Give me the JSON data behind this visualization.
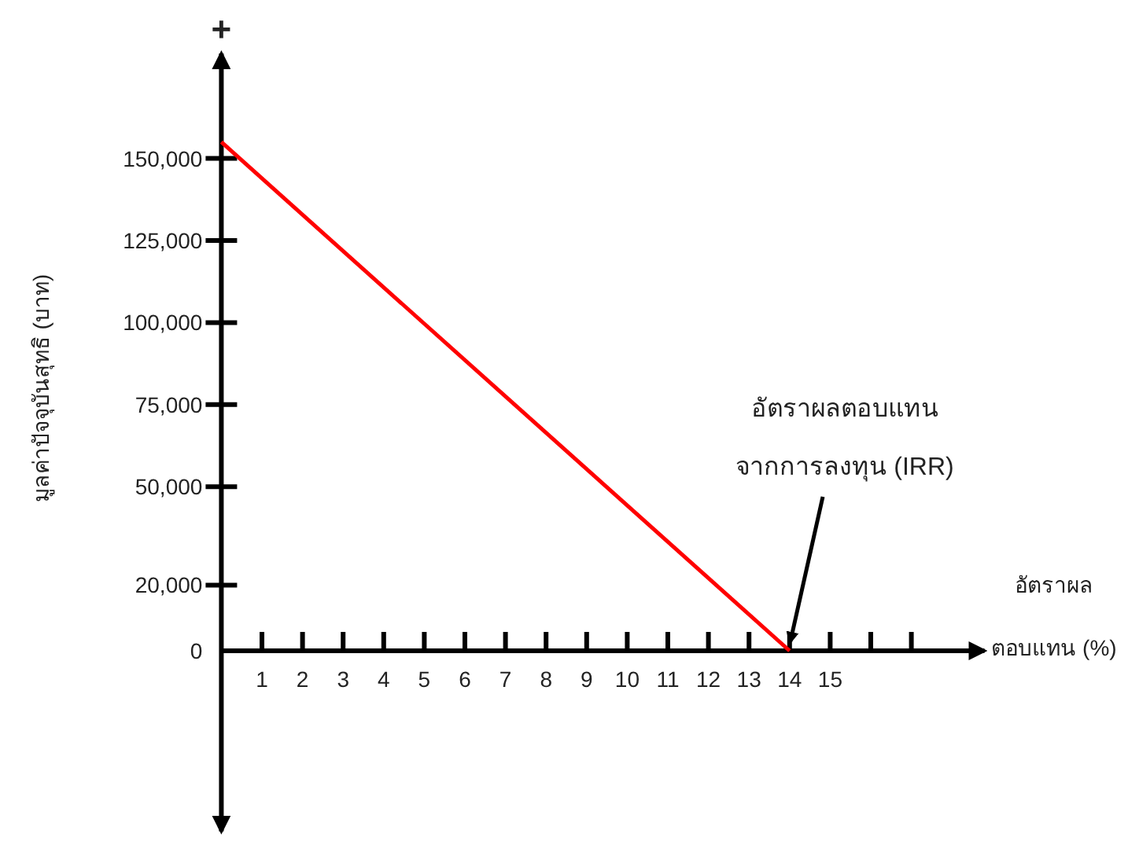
{
  "chart_data": {
    "type": "line",
    "xlabel": "อัตราผล\nตอบแทน (%)",
    "ylabel": "มูลค่าปัจจุบันสุทธิ (บาท)",
    "x": [
      0,
      14
    ],
    "series": [
      {
        "color": "#ff0000",
        "values": [
          155000,
          0
        ]
      }
    ],
    "xlim": [
      0,
      18.8
    ],
    "ylim": [
      -55000,
      182000
    ],
    "xticks": [
      1,
      2,
      3,
      4,
      5,
      6,
      7,
      8,
      9,
      10,
      11,
      12,
      13,
      14,
      15,
      {
        "value": 16,
        "label": null
      },
      {
        "value": 17,
        "label": null
      }
    ],
    "yticks": [
      0,
      {
        "value": 20000,
        "label": "20,000"
      },
      {
        "value": 50000,
        "label": "50,000"
      },
      {
        "value": 75000,
        "label": "75,000"
      },
      {
        "value": 100000,
        "label": "100,000"
      },
      {
        "value": 125000,
        "label": "125,000"
      },
      {
        "value": 150000,
        "label": "150,000"
      }
    ],
    "annotations": [
      "+",
      "อัตราผลตอบแทน",
      {
        "text": "จากการลงทุน (IRR)",
        "x": 14,
        "y": 0
      }
    ]
  }
}
